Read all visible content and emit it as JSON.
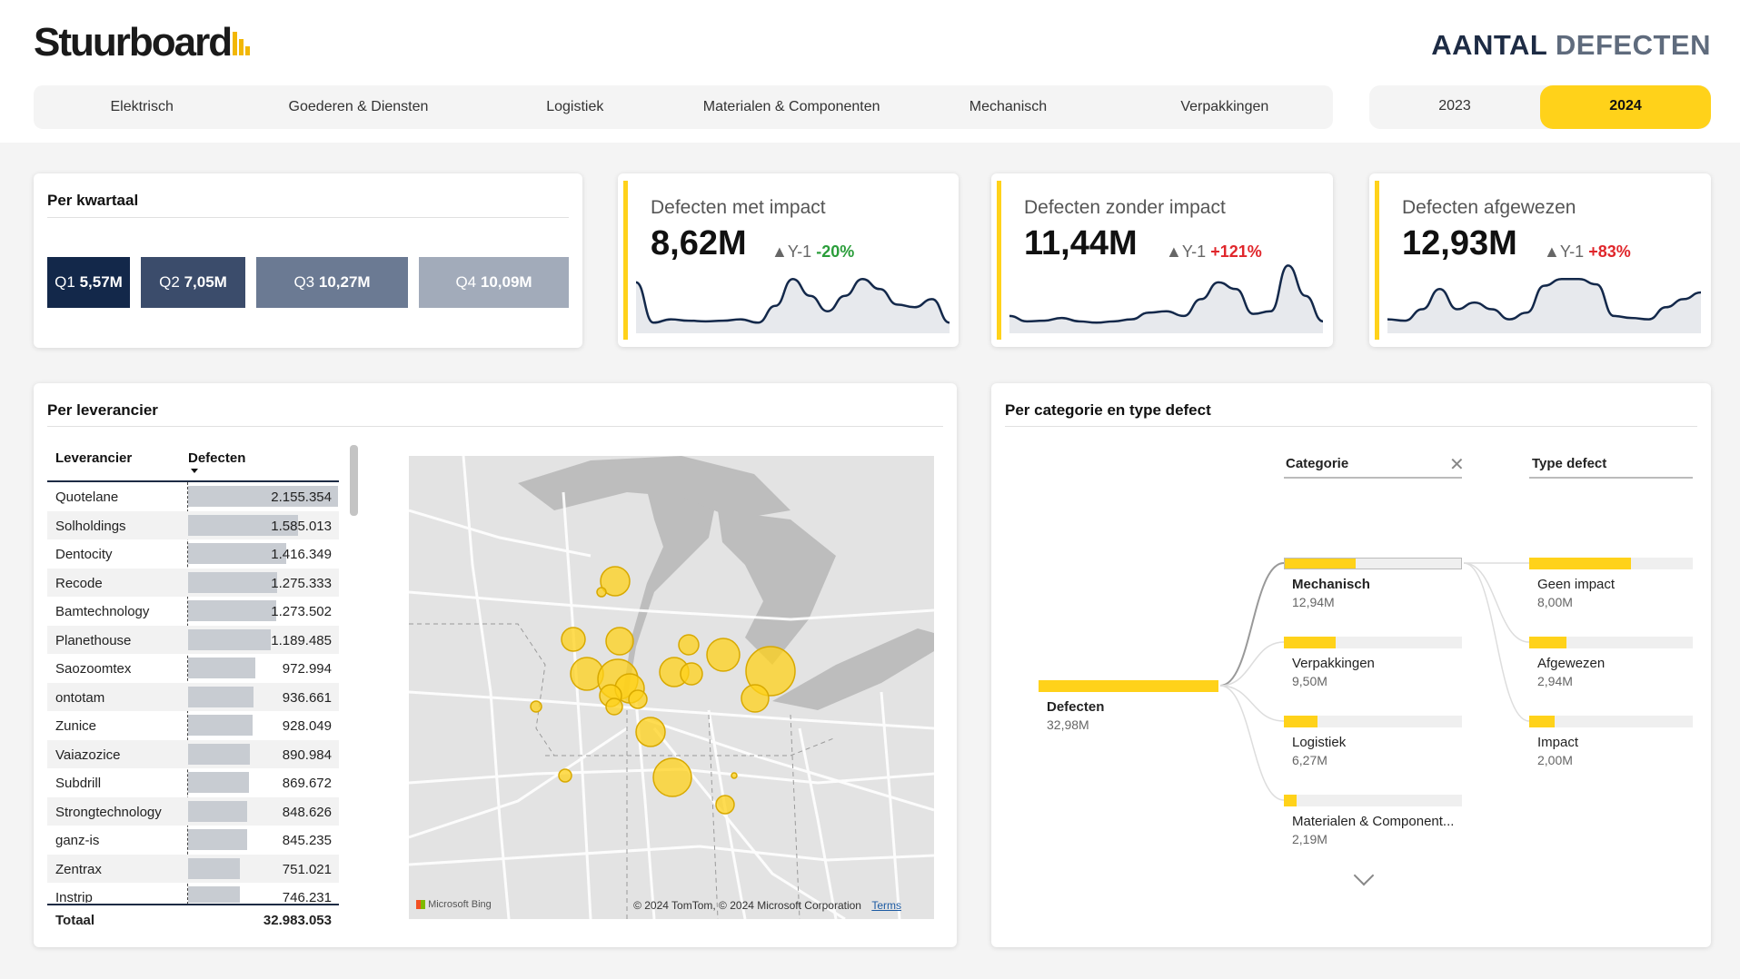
{
  "header": {
    "logo_text": "Stuurboard",
    "title_bold": "AANTAL",
    "title_light": "DEFECTEN",
    "accent_color": "#ffd21a"
  },
  "category_tabs": [
    "Elektrisch",
    "Goederen & Diensten",
    "Logistiek",
    "Materialen & Componenten",
    "Mechanisch",
    "Verpakkingen"
  ],
  "year_tabs": {
    "y2023": "2023",
    "y2024": "2024",
    "active": "2024"
  },
  "quarters": {
    "title": "Per kwartaal",
    "items": [
      {
        "label": "Q1",
        "value": "5,57M",
        "share": 0.169,
        "color": "#13284a"
      },
      {
        "label": "Q2",
        "value": "7,05M",
        "share": 0.214,
        "color": "#3b4c6b"
      },
      {
        "label": "Q3",
        "value": "10,27M",
        "share": 0.311,
        "color": "#6b7a93"
      },
      {
        "label": "Q4",
        "value": "10,09M",
        "share": 0.306,
        "color": "#a2abba"
      }
    ]
  },
  "kpis": [
    {
      "label": "Defecten met impact",
      "value": "8,62M",
      "delta_prefix": "▲Y-1",
      "delta": "-20%",
      "delta_type": "pos",
      "spark": [
        0.35,
        0.95,
        0.9,
        0.92,
        0.93,
        0.92,
        0.9,
        0.95,
        0.7,
        0.3,
        0.55,
        0.78,
        0.55,
        0.3,
        0.45,
        0.68,
        0.72,
        0.6,
        0.95
      ]
    },
    {
      "label": "Defecten zonder impact",
      "value": "11,44M",
      "delta_prefix": "▲Y-1",
      "delta": "+121%",
      "delta_type": "neg",
      "spark": [
        0.85,
        0.93,
        0.92,
        0.88,
        0.93,
        0.95,
        0.93,
        0.9,
        0.8,
        0.78,
        0.85,
        0.6,
        0.35,
        0.45,
        0.82,
        0.78,
        0.1,
        0.55,
        0.93
      ]
    },
    {
      "label": "Defecten afgewezen",
      "value": "12,93M",
      "delta_prefix": "▲Y-1",
      "delta": "+83%",
      "delta_type": "neg",
      "spark": [
        0.9,
        0.92,
        0.75,
        0.45,
        0.75,
        0.65,
        0.75,
        0.9,
        0.8,
        0.4,
        0.3,
        0.3,
        0.38,
        0.85,
        0.88,
        0.9,
        0.72,
        0.6,
        0.5
      ]
    }
  ],
  "supplier": {
    "title": "Per leverancier",
    "col_name": "Leverancier",
    "col_value": "Defecten",
    "rows": [
      {
        "name": "Quotelane",
        "value": "2.155.354",
        "n": 2155354
      },
      {
        "name": "Solholdings",
        "value": "1.585.013",
        "n": 1585013
      },
      {
        "name": "Dentocity",
        "value": "1.416.349",
        "n": 1416349
      },
      {
        "name": "Recode",
        "value": "1.275.333",
        "n": 1275333
      },
      {
        "name": "Bamtechnology",
        "value": "1.273.502",
        "n": 1273502
      },
      {
        "name": "Planethouse",
        "value": "1.189.485",
        "n": 1189485
      },
      {
        "name": "Saozoomtex",
        "value": "972.994",
        "n": 972994
      },
      {
        "name": "ontotam",
        "value": "936.661",
        "n": 936661
      },
      {
        "name": "Zunice",
        "value": "928.049",
        "n": 928049
      },
      {
        "name": "Vaiazozice",
        "value": "890.984",
        "n": 890984
      },
      {
        "name": "Subdrill",
        "value": "869.672",
        "n": 869672
      },
      {
        "name": "Strongtechnology",
        "value": "848.626",
        "n": 848626
      },
      {
        "name": "ganz-is",
        "value": "845.235",
        "n": 845235
      },
      {
        "name": "Zentrax",
        "value": "751.021",
        "n": 751021
      },
      {
        "name": "Instrip",
        "value": "746.231",
        "n": 746231
      }
    ],
    "total_label": "Totaal",
    "total_value": "32.983.053"
  },
  "map": {
    "credit_bing": "Microsoft Bing",
    "credit_text": "© 2024 TomTom, © 2024 Microsoft Corporation",
    "terms_link": "Terms"
  },
  "tree": {
    "title": "Per categorie en type defect",
    "col_categorie": "Categorie",
    "col_type": "Type defect",
    "root": {
      "label": "Defecten",
      "value": "32,98M"
    },
    "categories": [
      {
        "label": "Mechanisch",
        "value": "12,94M",
        "share": 0.4
      },
      {
        "label": "Verpakkingen",
        "value": "9,50M",
        "share": 0.29
      },
      {
        "label": "Logistiek",
        "value": "6,27M",
        "share": 0.19
      },
      {
        "label": "Materialen & Component...",
        "value": "2,19M",
        "share": 0.07
      }
    ],
    "types": [
      {
        "label": "Geen impact",
        "value": "8,00M",
        "share": 0.62
      },
      {
        "label": "Afgewezen",
        "value": "2,94M",
        "share": 0.23
      },
      {
        "label": "Impact",
        "value": "2,00M",
        "share": 0.155
      }
    ]
  }
}
